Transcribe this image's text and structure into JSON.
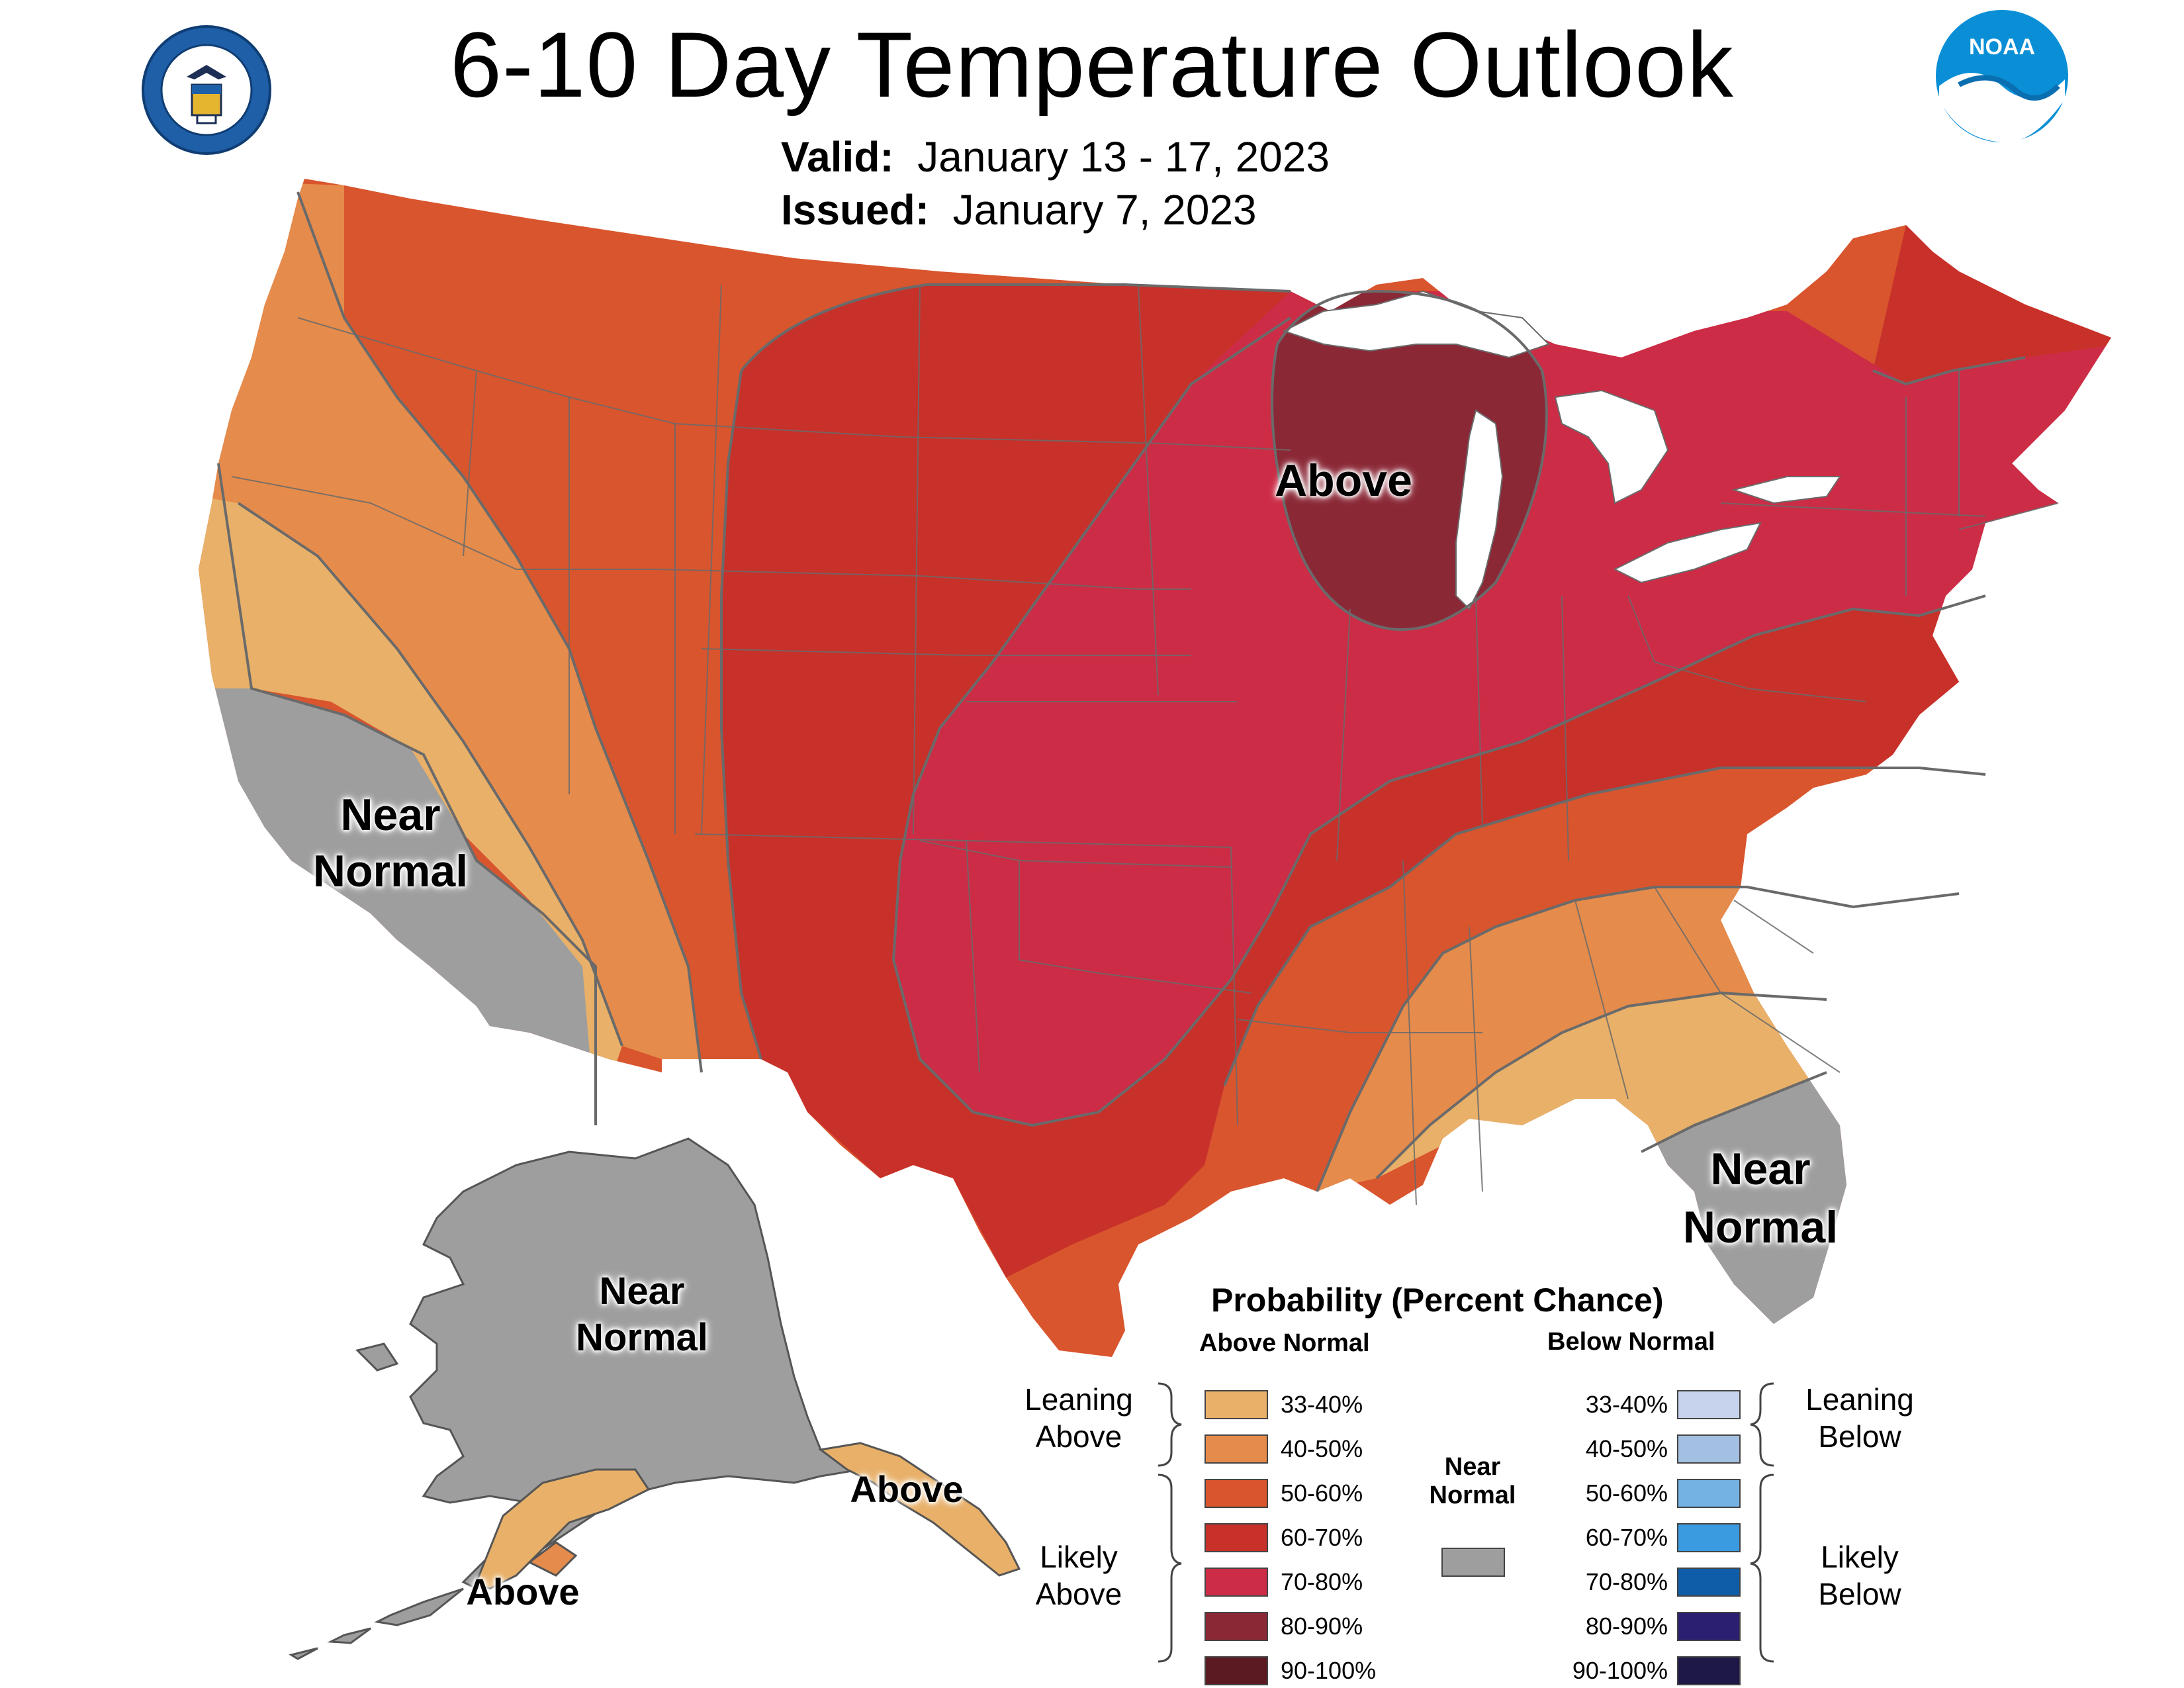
{
  "title": "6-10 Day Temperature Outlook",
  "valid_label": "Valid:",
  "valid_dates": "January 13 - 17, 2023",
  "issued_label": "Issued:",
  "issued_date": "January 7, 2023",
  "logos": {
    "commerce_seal": "department-of-commerce-seal",
    "noaa_text": "NOAA"
  },
  "map_labels": {
    "above_great_lakes": "Above",
    "near_normal_ca_1": "Near",
    "near_normal_ca_2": "Normal",
    "near_normal_fl_1": "Near",
    "near_normal_fl_2": "Normal",
    "near_normal_ak_1": "Near",
    "near_normal_ak_2": "Normal",
    "above_ak_se": "Above",
    "above_ak_sw": "Above"
  },
  "colors": {
    "above_33_40": "#e8b068",
    "above_40_50": "#e58b4b",
    "above_50_60": "#d9552e",
    "above_60_70": "#c8302a",
    "above_70_80": "#cc2c46",
    "above_80_90": "#8b2836",
    "above_90_100": "#5b1a22",
    "near_normal": "#9e9e9e",
    "below_33_40": "#c7d3ec",
    "below_40_50": "#a3bfe2",
    "below_50_60": "#74b2e4",
    "below_60_70": "#3a9be0",
    "below_70_80": "#0f5ca8",
    "below_80_90": "#2a1f70",
    "below_90_100": "#1d1848",
    "water": "#ffffff",
    "border": "#6a6a6a"
  },
  "legend": {
    "title": "Probability (Percent Chance)",
    "above_header": "Above Normal",
    "below_header": "Below Normal",
    "near_header_1": "Near",
    "near_header_2": "Normal",
    "leaning_above_1": "Leaning",
    "leaning_above_2": "Above",
    "likely_above_1": "Likely",
    "likely_above_2": "Above",
    "leaning_below_1": "Leaning",
    "leaning_below_2": "Below",
    "likely_below_1": "Likely",
    "likely_below_2": "Below",
    "above_ranges": [
      "33-40%",
      "40-50%",
      "50-60%",
      "60-70%",
      "70-80%",
      "80-90%",
      "90-100%"
    ],
    "below_ranges": [
      "33-40%",
      "40-50%",
      "50-60%",
      "60-70%",
      "70-80%",
      "80-90%",
      "90-100%"
    ]
  }
}
